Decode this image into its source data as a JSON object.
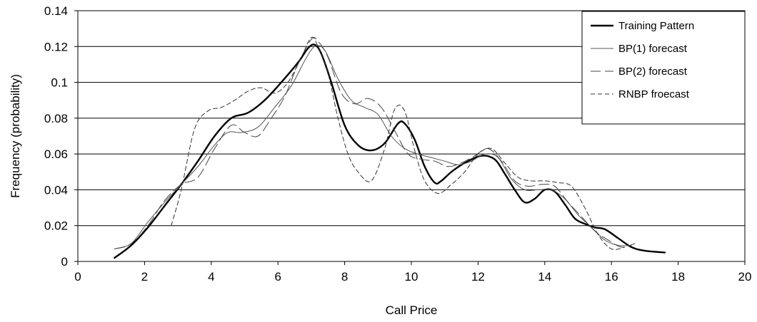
{
  "chart_data": {
    "type": "line",
    "title": "",
    "xlabel": "Call Price",
    "ylabel": "Frequency (probability)",
    "xlim": [
      0,
      20
    ],
    "ylim": [
      0,
      0.14
    ],
    "xticks": [
      0,
      2,
      4,
      6,
      8,
      10,
      12,
      14,
      16,
      18,
      20
    ],
    "yticks": [
      0,
      0.02,
      0.04,
      0.06,
      0.08,
      0.1,
      0.12,
      0.14
    ],
    "xtick_labels": [
      "0",
      "2",
      "4",
      "6",
      "8",
      "10",
      "12",
      "14",
      "16",
      "18",
      "20"
    ],
    "ytick_labels": [
      "0",
      "0.02",
      "0.04",
      "0.06",
      "0.08",
      "0.1",
      "0.12",
      "0.14"
    ],
    "grid": "horizontal",
    "legend_position": "top-right",
    "series": [
      {
        "name": "Training Pattern",
        "color": "#000000",
        "x": [
          1.1,
          1.6,
          2.1,
          2.6,
          3.1,
          3.6,
          4.1,
          4.6,
          5.1,
          5.6,
          6.1,
          6.6,
          6.9,
          7.1,
          7.3,
          7.6,
          8.0,
          8.4,
          8.8,
          9.2,
          9.6,
          9.8,
          10.1,
          10.4,
          10.7,
          10.9,
          11.2,
          11.6,
          12.1,
          12.5,
          12.8,
          13.1,
          13.4,
          13.7,
          14.0,
          14.3,
          14.6,
          14.9,
          15.2,
          15.5,
          15.8,
          16.2,
          16.6,
          17.0,
          17.6
        ],
        "y": [
          0.002,
          0.009,
          0.019,
          0.031,
          0.043,
          0.056,
          0.07,
          0.08,
          0.083,
          0.09,
          0.1,
          0.111,
          0.119,
          0.121,
          0.116,
          0.1,
          0.076,
          0.065,
          0.062,
          0.066,
          0.077,
          0.077,
          0.068,
          0.053,
          0.044,
          0.045,
          0.05,
          0.055,
          0.059,
          0.057,
          0.049,
          0.04,
          0.033,
          0.035,
          0.04,
          0.039,
          0.032,
          0.024,
          0.021,
          0.019,
          0.018,
          0.013,
          0.008,
          0.006,
          0.005
        ]
      },
      {
        "name": "BP(1) forecast",
        "color": "#555555",
        "x": [
          1.1,
          1.6,
          2.1,
          2.6,
          3.1,
          3.6,
          4.1,
          4.5,
          4.9,
          5.4,
          5.9,
          6.4,
          6.8,
          7.1,
          7.4,
          7.8,
          8.2,
          8.6,
          9.0,
          9.4,
          9.8,
          10.2,
          10.6,
          11.0,
          11.4,
          11.8,
          12.2,
          12.6,
          13.0,
          13.4,
          13.8,
          14.2,
          14.6,
          15.0,
          15.4,
          15.8,
          16.2,
          16.6
        ],
        "y": [
          0.007,
          0.01,
          0.022,
          0.033,
          0.043,
          0.053,
          0.065,
          0.072,
          0.072,
          0.075,
          0.086,
          0.098,
          0.112,
          0.12,
          0.118,
          0.102,
          0.09,
          0.086,
          0.082,
          0.07,
          0.063,
          0.06,
          0.058,
          0.056,
          0.054,
          0.056,
          0.06,
          0.058,
          0.046,
          0.04,
          0.04,
          0.04,
          0.035,
          0.026,
          0.019,
          0.012,
          0.009,
          0.009
        ]
      },
      {
        "name": "BP(2) forecast",
        "color": "#444444",
        "x": [
          1.1,
          1.6,
          2.1,
          2.6,
          3.1,
          3.6,
          4.1,
          4.6,
          5.0,
          5.4,
          5.8,
          6.2,
          6.6,
          7.0,
          7.2,
          7.5,
          7.9,
          8.3,
          8.7,
          9.1,
          9.5,
          9.9,
          10.3,
          10.7,
          11.1,
          11.5,
          11.9,
          12.3,
          12.7,
          13.1,
          13.5,
          13.9,
          14.3,
          14.7,
          15.1,
          15.5,
          15.9,
          16.3,
          16.7
        ],
        "y": [
          0.007,
          0.01,
          0.02,
          0.034,
          0.043,
          0.047,
          0.063,
          0.076,
          0.072,
          0.07,
          0.08,
          0.092,
          0.11,
          0.124,
          0.123,
          0.114,
          0.094,
          0.088,
          0.091,
          0.086,
          0.073,
          0.06,
          0.057,
          0.056,
          0.053,
          0.055,
          0.059,
          0.063,
          0.056,
          0.045,
          0.042,
          0.043,
          0.042,
          0.033,
          0.025,
          0.017,
          0.012,
          0.008,
          0.01
        ]
      },
      {
        "name": "RNBP froecast",
        "color": "#333333",
        "x": [
          2.8,
          3.1,
          3.5,
          3.9,
          4.3,
          4.7,
          5.1,
          5.5,
          5.9,
          6.3,
          6.7,
          7.0,
          7.2,
          7.5,
          7.8,
          8.1,
          8.4,
          8.8,
          9.2,
          9.5,
          9.8,
          10.1,
          10.4,
          10.8,
          11.2,
          11.6,
          12.0,
          12.4,
          12.8,
          13.2,
          13.6,
          14.0,
          14.4,
          14.8,
          15.2,
          15.6,
          16.0,
          16.4
        ],
        "y": [
          0.02,
          0.04,
          0.074,
          0.084,
          0.086,
          0.09,
          0.095,
          0.097,
          0.094,
          0.1,
          0.114,
          0.125,
          0.12,
          0.105,
          0.08,
          0.06,
          0.05,
          0.045,
          0.063,
          0.085,
          0.084,
          0.062,
          0.045,
          0.038,
          0.043,
          0.05,
          0.06,
          0.063,
          0.055,
          0.047,
          0.045,
          0.045,
          0.044,
          0.042,
          0.03,
          0.015,
          0.007,
          0.008
        ]
      }
    ]
  }
}
